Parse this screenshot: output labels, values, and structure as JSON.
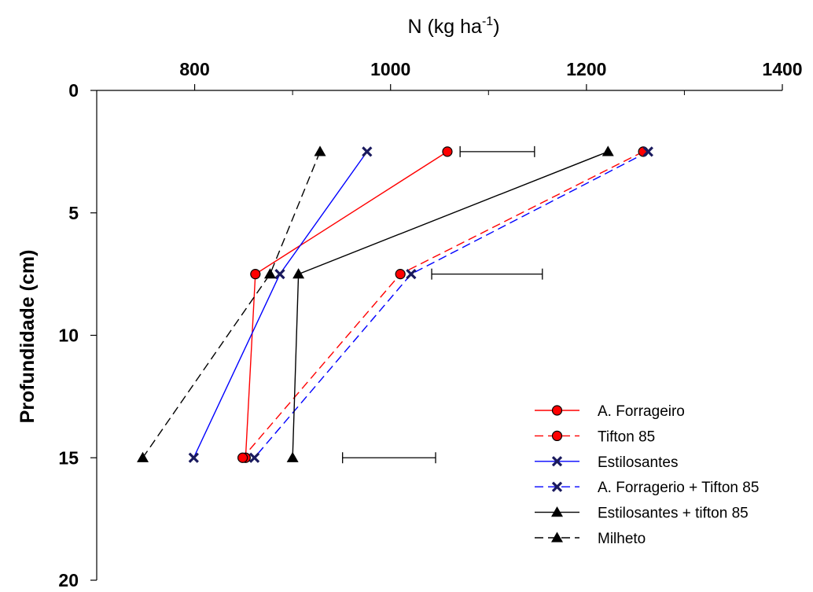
{
  "chart_data": {
    "type": "line",
    "title": "",
    "xlabel": "N (kg ha",
    "xlabel_superscript": "-1",
    "xlabel_suffix": ")",
    "ylabel": "Profundidade (cm)",
    "xlim": [
      700,
      1400
    ],
    "ylim": [
      0,
      20
    ],
    "x_axis_position": "top",
    "y_axis_inverted": true,
    "x_ticks": [
      800,
      1000,
      1200,
      1400
    ],
    "x_minor_ticks": [
      700,
      900,
      1100,
      1300
    ],
    "y_ticks": [
      0,
      5,
      10,
      15,
      20
    ],
    "grid": false,
    "legend_position": "bottom-right",
    "series": [
      {
        "name": "A. Forrageiro",
        "color": "#ff0000",
        "dashed": false,
        "marker": "circle",
        "marker_fill": "#ff0000",
        "x": [
          1058,
          862,
          852
        ],
        "y": [
          2.5,
          7.5,
          15
        ]
      },
      {
        "name": "Tifton 85",
        "color": "#ff0000",
        "dashed": true,
        "marker": "circle",
        "marker_fill": "#ff0000",
        "x": [
          1258,
          1010,
          849
        ],
        "y": [
          2.5,
          7.5,
          15
        ]
      },
      {
        "name": "Estilosantes",
        "color": "#0000ff",
        "dashed": false,
        "marker": "x",
        "marker_fill": "#1a1a5e",
        "x": [
          976,
          887,
          799
        ],
        "y": [
          2.5,
          7.5,
          15
        ]
      },
      {
        "name": "A. Forragerio + Tifton 85",
        "color": "#0000ff",
        "dashed": true,
        "marker": "x",
        "marker_fill": "#1a1a5e",
        "x": [
          1263,
          1021,
          861
        ],
        "y": [
          2.5,
          7.5,
          15
        ]
      },
      {
        "name": "Estilosantes + tifton 85",
        "color": "#000000",
        "dashed": false,
        "marker": "triangle",
        "marker_fill": "#000000",
        "x": [
          1222,
          906,
          900
        ],
        "y": [
          2.5,
          7.5,
          15
        ]
      },
      {
        "name": "Milheto",
        "color": "#000000",
        "dashed": true,
        "marker": "triangle",
        "marker_fill": "#000000",
        "x": [
          928,
          877,
          747
        ],
        "y": [
          2.5,
          7.5,
          15
        ]
      }
    ],
    "error_bars": [
      {
        "y": 2.5,
        "x_start": 1071,
        "x_end": 1147
      },
      {
        "y": 7.5,
        "x_start": 1042,
        "x_end": 1155
      },
      {
        "y": 15,
        "x_start": 951,
        "x_end": 1046
      }
    ]
  }
}
